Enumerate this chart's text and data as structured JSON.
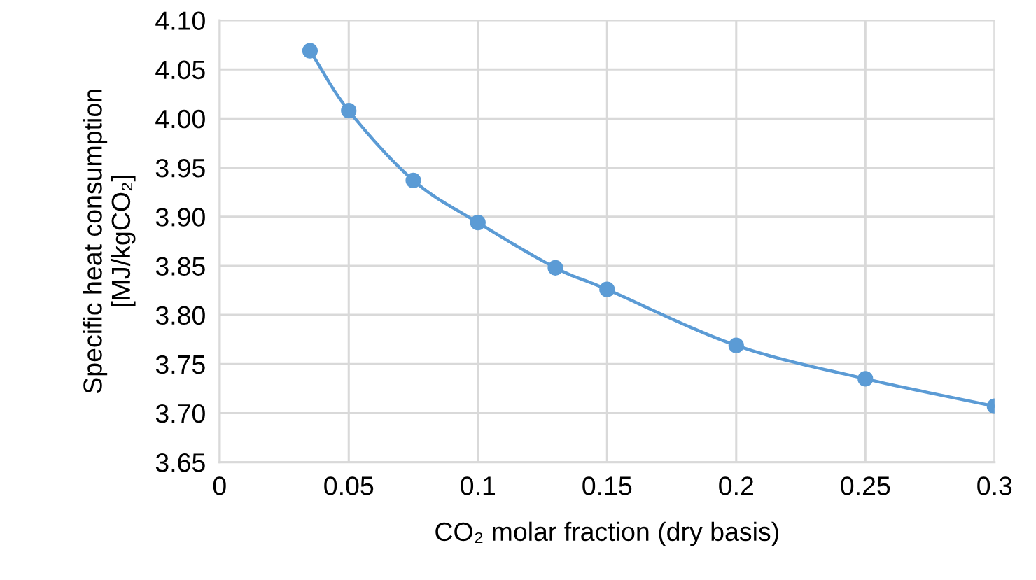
{
  "chart_data": {
    "type": "line",
    "xlabel": "CO₂ molar fraction (dry basis)",
    "ylabel": "Specific heat consumption\n[MJ/kgCO₂]",
    "x": [
      0.035,
      0.05,
      0.075,
      0.1,
      0.13,
      0.15,
      0.2,
      0.25,
      0.3
    ],
    "series": [
      {
        "color": "#5b9bd5",
        "values": [
          4.069,
          4.008,
          3.937,
          3.894,
          3.848,
          3.826,
          3.769,
          3.735,
          3.707
        ]
      }
    ],
    "xlim": [
      0,
      0.3
    ],
    "xticks": [
      0,
      0.05,
      0.1,
      0.15,
      0.2,
      0.25,
      0.3
    ],
    "ylim": [
      3.65,
      4.1
    ],
    "yticks": [
      {
        "value": 3.65,
        "label": "3.65"
      },
      {
        "value": 3.7,
        "label": "3.70"
      },
      {
        "value": 3.75,
        "label": "3.75"
      },
      {
        "value": 3.8,
        "label": "3.80"
      },
      {
        "value": 3.85,
        "label": "3.85"
      },
      {
        "value": 3.9,
        "label": "3.90"
      },
      {
        "value": 3.95,
        "label": "3.95"
      },
      {
        "value": 4.0,
        "label": "4.00"
      },
      {
        "value": 4.05,
        "label": "4.05"
      },
      {
        "value": 4.1,
        "label": "4.10"
      }
    ],
    "grid": true,
    "marker": "circle",
    "line_style": "solid"
  }
}
